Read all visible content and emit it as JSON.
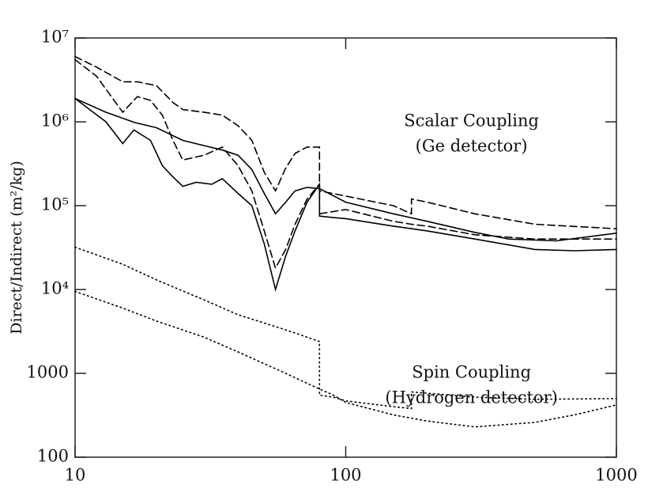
{
  "chart_data": {
    "type": "line",
    "ylabel": "Direct/Indirect (m²/kg)",
    "annotations": [
      {
        "text": "Scalar Coupling",
        "x": 200,
        "y": 1000000
      },
      {
        "text": "(Ge detector)",
        "x": 200,
        "y": 500000
      },
      {
        "text": "Spin Coupling",
        "x": 200,
        "y": 1000
      },
      {
        "text": "(Hydrogen detector)",
        "x": 200,
        "y": 500
      }
    ],
    "xscale": "log",
    "yscale": "log",
    "xlim": [
      10,
      1000
    ],
    "ylim": [
      100,
      10000000
    ],
    "xticks": [
      10,
      100,
      1000
    ],
    "yticks": [
      100,
      1000,
      {
        "value": 10000,
        "label": "10⁴"
      },
      {
        "value": 100000,
        "label": "10⁵"
      },
      {
        "value": 1000000,
        "label": "10⁶"
      },
      {
        "value": 10000000,
        "label": "10⁷"
      }
    ],
    "series": [
      {
        "color": "#000000",
        "dash": "solid",
        "x": [
          10,
          13,
          16.6,
          20,
          25,
          30,
          35,
          40,
          45,
          50,
          55,
          60,
          65,
          72,
          80,
          100,
          150,
          200,
          300,
          400,
          600,
          1000
        ],
        "values": [
          1900000,
          1300000,
          980000,
          850000,
          600000,
          520000,
          460000,
          400000,
          270000,
          140000,
          80000,
          110000,
          150000,
          165000,
          160000,
          110000,
          80000,
          65000,
          48000,
          40000,
          38000,
          47000
        ]
      },
      {
        "color": "#000000",
        "dash": "solid",
        "x": [
          10,
          13,
          15,
          16.5,
          19,
          21,
          23,
          25,
          28,
          32,
          35,
          40,
          45,
          50,
          55,
          60,
          65,
          72,
          80,
          80,
          90,
          100,
          150,
          200,
          300,
          500,
          700,
          1000
        ],
        "values": [
          1900000,
          1000000,
          550000,
          800000,
          600000,
          300000,
          220000,
          170000,
          190000,
          180000,
          210000,
          140000,
          100000,
          35000,
          10000,
          25000,
          50000,
          110000,
          180000,
          75000,
          72000,
          70000,
          57000,
          50000,
          40000,
          30000,
          29000,
          30000
        ]
      },
      {
        "color": "#000000",
        "dash": "dashed",
        "x": [
          10,
          12,
          15,
          17,
          20,
          23,
          25,
          30,
          35,
          40,
          45,
          50,
          55,
          60,
          65,
          72,
          80,
          80,
          100,
          150,
          175,
          175,
          200,
          300,
          500,
          1000
        ],
        "values": [
          6000000,
          4500000,
          3000000,
          3000000,
          2700000,
          1700000,
          1400000,
          1300000,
          1200000,
          900000,
          600000,
          250000,
          150000,
          280000,
          420000,
          500000,
          500000,
          150000,
          130000,
          100000,
          80000,
          120000,
          110000,
          80000,
          60000,
          53000
        ]
      },
      {
        "color": "#000000",
        "dash": "dashed",
        "x": [
          10,
          12,
          15,
          17,
          19,
          21,
          23,
          25,
          30,
          35,
          40,
          45,
          50,
          55,
          60,
          65,
          72,
          80,
          80,
          100,
          150,
          175,
          200,
          300,
          500,
          1000
        ],
        "values": [
          5500000,
          3500000,
          1300000,
          2000000,
          1800000,
          1200000,
          600000,
          350000,
          400000,
          500000,
          300000,
          150000,
          50000,
          18000,
          30000,
          60000,
          120000,
          180000,
          80000,
          90000,
          65000,
          60000,
          57000,
          45000,
          40000,
          40000
        ]
      },
      {
        "color": "#000000",
        "dash": "dotted",
        "x": [
          10,
          15,
          20,
          30,
          40,
          60,
          80,
          80,
          90,
          100,
          150,
          175,
          175,
          200,
          300,
          500,
          1000
        ],
        "values": [
          32000,
          20000,
          13000,
          7500,
          5000,
          3300,
          2400,
          550,
          520,
          470,
          400,
          380,
          600,
          580,
          520,
          490,
          500
        ]
      },
      {
        "color": "#000000",
        "dash": "dotted",
        "x": [
          10,
          15,
          20,
          30,
          40,
          60,
          80,
          90,
          100,
          150,
          200,
          300,
          500,
          700,
          1000
        ],
        "values": [
          9500,
          6000,
          4200,
          2700,
          1800,
          1000,
          650,
          550,
          450,
          320,
          270,
          230,
          260,
          320,
          420
        ]
      }
    ]
  }
}
